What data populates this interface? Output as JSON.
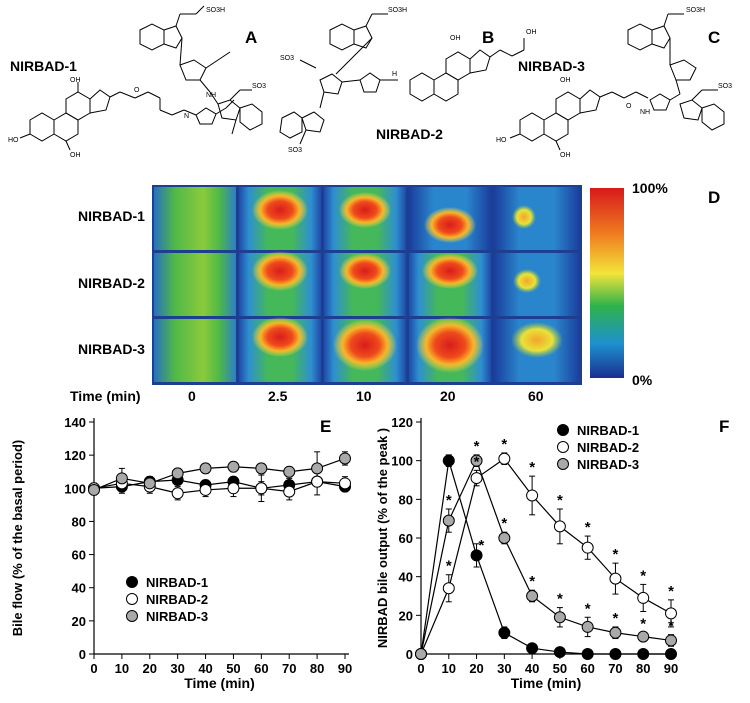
{
  "panels": {
    "A": "A",
    "B": "B",
    "C": "C",
    "D": "D",
    "E": "E",
    "F": "F"
  },
  "structures": {
    "a_name": "NIRBAD-1",
    "b_name": "NIRBAD-2",
    "c_name": "NIRBAD-3",
    "so3h": "SO3H",
    "so3": "SO3",
    "oh": "OH",
    "ho": "HO",
    "h": "H",
    "n": "N",
    "o": "O",
    "nh": "NH",
    "ho_acid": "OH"
  },
  "imaging": {
    "rows": [
      "NIRBAD-1",
      "NIRBAD-2",
      "NIRBAD-3"
    ],
    "time_label": "Time (min)",
    "times": [
      "0",
      "2.5",
      "10",
      "20",
      "60"
    ],
    "scale_top": "100%",
    "scale_bottom": "0%"
  },
  "chart_data": [
    {
      "panel": "E",
      "type": "line",
      "title": "",
      "xlabel": "Time (min)",
      "ylabel": "Bile flow (% of the basal period)",
      "xlim": [
        0,
        90
      ],
      "ylim": [
        0,
        140
      ],
      "xticks": [
        0,
        10,
        20,
        30,
        40,
        50,
        60,
        70,
        80,
        90
      ],
      "yticks": [
        0,
        20,
        40,
        60,
        80,
        100,
        120,
        140
      ],
      "legend_position": "bottom-left",
      "series": [
        {
          "name": "NIRBAD-1",
          "fill": "#000000",
          "x": [
            0,
            10,
            20,
            30,
            40,
            50,
            60,
            70,
            80,
            90
          ],
          "y": [
            100,
            101,
            104,
            105,
            102,
            104,
            100,
            102,
            104,
            101
          ],
          "err": [
            3,
            4,
            3,
            3,
            3,
            3,
            4,
            4,
            3,
            3
          ]
        },
        {
          "name": "NIRBAD-2",
          "fill": "#ffffff",
          "x": [
            0,
            10,
            20,
            30,
            40,
            50,
            60,
            70,
            80,
            90
          ],
          "y": [
            100,
            103,
            101,
            97,
            99,
            100,
            100,
            98,
            104,
            103
          ],
          "err": [
            3,
            5,
            4,
            4,
            4,
            5,
            8,
            5,
            8,
            4
          ]
        },
        {
          "name": "NIRBAD-3",
          "fill": "#a9a9a9",
          "x": [
            0,
            10,
            20,
            30,
            40,
            50,
            60,
            70,
            80,
            90
          ],
          "y": [
            99,
            106,
            103,
            109,
            112,
            113,
            112,
            110,
            112,
            118
          ],
          "err": [
            3,
            6,
            4,
            3,
            3,
            3,
            3,
            3,
            10,
            4
          ]
        }
      ]
    },
    {
      "panel": "F",
      "type": "line",
      "title": "",
      "xlabel": "Time (min)",
      "ylabel": "NIRBAD bile output (% of the peak )",
      "xlim": [
        0,
        90
      ],
      "ylim": [
        0,
        120
      ],
      "xticks": [
        0,
        10,
        20,
        30,
        40,
        50,
        60,
        70,
        80,
        90
      ],
      "yticks": [
        0,
        20,
        40,
        60,
        80,
        100,
        120
      ],
      "legend_position": "top-right",
      "significance_marker": "*",
      "series": [
        {
          "name": "NIRBAD-1",
          "fill": "#000000",
          "x": [
            0,
            10,
            20,
            30,
            40,
            50,
            60,
            70,
            80,
            90
          ],
          "y": [
            0,
            100,
            51,
            11,
            3,
            1,
            0,
            0,
            0,
            0
          ],
          "err": [
            0,
            3,
            6,
            3,
            1,
            1,
            0,
            0,
            0,
            0
          ]
        },
        {
          "name": "NIRBAD-2",
          "fill": "#ffffff",
          "x": [
            0,
            10,
            20,
            30,
            40,
            50,
            60,
            70,
            80,
            90
          ],
          "y": [
            0,
            34,
            91,
            101,
            82,
            66,
            55,
            39,
            29,
            21
          ],
          "err": [
            0,
            7,
            4,
            3,
            10,
            9,
            6,
            8,
            7,
            7
          ]
        },
        {
          "name": "NIRBAD-3",
          "fill": "#a9a9a9",
          "x": [
            0,
            10,
            20,
            30,
            40,
            50,
            60,
            70,
            80,
            90
          ],
          "y": [
            0,
            69,
            100,
            60,
            30,
            19,
            14,
            11,
            9,
            7
          ],
          "err": [
            0,
            6,
            3,
            3,
            3,
            5,
            5,
            3,
            2,
            3
          ]
        }
      ]
    }
  ]
}
